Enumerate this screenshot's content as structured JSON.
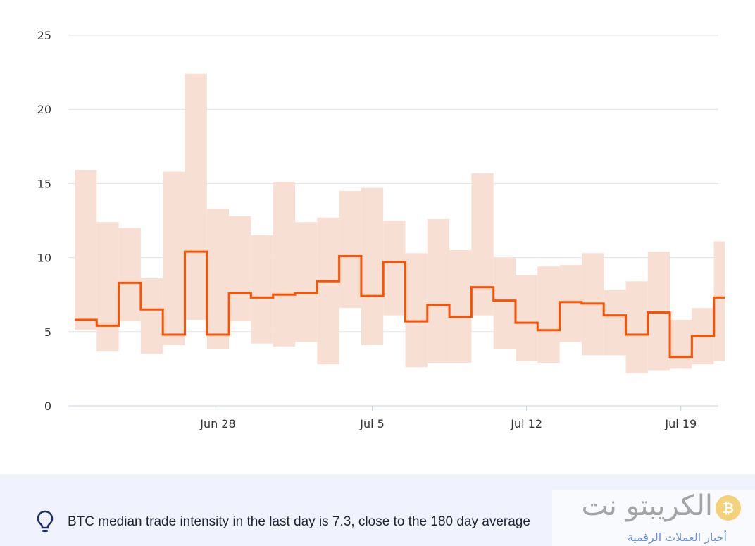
{
  "chart_data": {
    "type": "line",
    "title": "",
    "xlabel": "",
    "ylabel": "",
    "ylim": [
      0,
      25
    ],
    "yticks": [
      "0",
      "5",
      "10",
      "15",
      "20",
      "25"
    ],
    "xticks": [
      {
        "label": "Jun 28",
        "day": 6
      },
      {
        "label": "Jul 5",
        "day": 13
      },
      {
        "label": "Jul 12",
        "day": 20
      },
      {
        "label": "Jul 19",
        "day": 27
      }
    ],
    "start_date": "Jun 22",
    "xlim_days": [
      0,
      30.5
    ],
    "grid": true,
    "series": [
      {
        "name": "median",
        "color": "#ff5000",
        "values": [
          5.8,
          5.4,
          8.3,
          6.5,
          4.8,
          10.4,
          4.8,
          7.6,
          7.3,
          7.5,
          7.6,
          8.4,
          10.1,
          7.4,
          9.7,
          5.7,
          6.8,
          6.0,
          8.0,
          7.1,
          5.6,
          5.1,
          7.0,
          6.9,
          6.1,
          4.8,
          6.3,
          3.3,
          4.7,
          7.3
        ]
      },
      {
        "name": "range_upper",
        "color": "#f7e0d3",
        "values": [
          15.9,
          12.4,
          12.0,
          8.6,
          15.8,
          22.4,
          13.3,
          12.8,
          11.5,
          15.1,
          12.4,
          12.7,
          14.5,
          14.7,
          12.5,
          10.3,
          12.6,
          10.5,
          15.7,
          10.0,
          8.8,
          9.4,
          9.5,
          10.3,
          7.8,
          8.4,
          10.4,
          5.8,
          6.6,
          11.1
        ]
      },
      {
        "name": "range_lower",
        "color": "#f7e0d3",
        "values": [
          5.1,
          3.7,
          5.7,
          3.5,
          4.1,
          5.8,
          3.8,
          5.7,
          4.2,
          4.0,
          4.3,
          2.8,
          6.6,
          4.1,
          6.1,
          2.6,
          2.9,
          2.9,
          6.1,
          3.8,
          3.0,
          2.9,
          4.3,
          3.4,
          3.4,
          2.2,
          2.4,
          2.5,
          2.8,
          3.0
        ]
      }
    ],
    "step_starts": [
      -0.5,
      0.5,
      1.5,
      2.5,
      3.5,
      4.5,
      5.5,
      6.5,
      7.5,
      8.5,
      9.5,
      10.5,
      11.5,
      12.5,
      13.5,
      14.5,
      15.5,
      16.5,
      17.5,
      18.5,
      19.5,
      20.5,
      21.5,
      22.5,
      23.5,
      24.5,
      25.5,
      26.5,
      27.5,
      28.5
    ]
  },
  "footer": {
    "insight": "BTC median trade intensity in the last day is 7.3, close to the 180 day average"
  },
  "watermark": {
    "title": "الكريبتو نت",
    "subtitle": "أخبار العملات الرقمية",
    "coin": "₿"
  }
}
